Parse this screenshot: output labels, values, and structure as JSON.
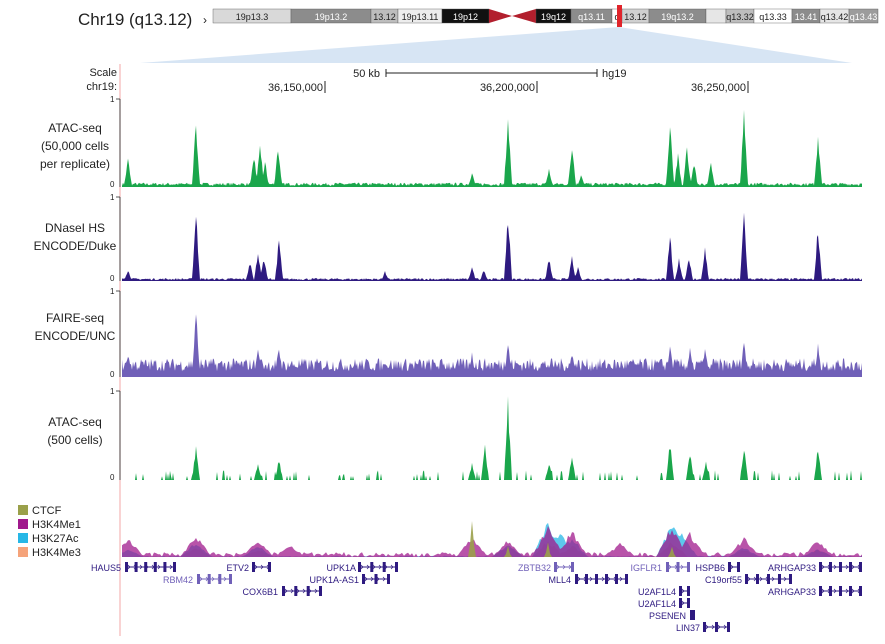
{
  "chrom_title": "Chr19 (q13.12)",
  "ideogram_bands": [
    {
      "label": "19p13.3",
      "shade": "#d9d9d9"
    },
    {
      "label": "19p13.2",
      "shade": "#8c8c8c"
    },
    {
      "label": "13.12",
      "shade": "#bdbdbd"
    },
    {
      "label": "19p13.11",
      "shade": "#ededed"
    },
    {
      "label": "19p12",
      "shade": "#111111"
    },
    {
      "label": "",
      "shade": "#b21f2d"
    },
    {
      "label": "",
      "shade": "#b21f2d"
    },
    {
      "label": "19q12",
      "shade": "#111111"
    },
    {
      "label": "q13.11",
      "shade": "#8c8c8c"
    },
    {
      "label": "q",
      "shade": "#ffffff"
    },
    {
      "label": "13.12",
      "shade": "#d0d0d0"
    },
    {
      "label": "19q13.2",
      "shade": "#8c8c8c"
    },
    {
      "label": "",
      "shade": "#e6e6e6"
    },
    {
      "label": "q13.32",
      "shade": "#bdbdbd"
    },
    {
      "label": "q13.33",
      "shade": "#ffffff"
    },
    {
      "label": "13.41",
      "shade": "#8c8c8c"
    },
    {
      "label": "q13.42",
      "shade": "#e6e6e6"
    },
    {
      "label": "q13.43",
      "shade": "#9c9c9c"
    }
  ],
  "scale": {
    "label": "Scale",
    "chrom": "chr19:",
    "bar": "50 kb",
    "assembly": "hg19"
  },
  "positions": [
    "36,150,000",
    "36,200,000",
    "36,250,000"
  ],
  "tracks": [
    {
      "id": "atac",
      "name_lines": [
        "ATAC-seq",
        "(50,000 cells",
        "per replicate)"
      ],
      "color": "#1aa64b",
      "ymax": "1",
      "ymin": "0"
    },
    {
      "id": "dnase",
      "name_lines": [
        "DNaseI HS",
        "ENCODE/Duke"
      ],
      "color": "#2e1a80",
      "ymax": "1",
      "ymin": "0"
    },
    {
      "id": "faire",
      "name_lines": [
        "FAIRE-seq",
        "ENCODE/UNC"
      ],
      "color": "#7060b8",
      "ymax": "1",
      "ymin": "0"
    },
    {
      "id": "atac500",
      "name_lines": [
        "ATAC-seq",
        "(500 cells)"
      ],
      "color": "#1aa64b",
      "ymax": "1",
      "ymin": "0"
    }
  ],
  "legend": [
    {
      "label": "CTCF",
      "color": "#9aa04a"
    },
    {
      "label": "H3K4Me1",
      "color": "#a0198c"
    },
    {
      "label": "H3K27Ac",
      "color": "#27b7e6"
    },
    {
      "label": "H3K4Me3",
      "color": "#f5a37a"
    }
  ],
  "genes": [
    {
      "name": "HAUS5",
      "color": "#2e1a80"
    },
    {
      "name": "RBM42",
      "color": "#7060b8"
    },
    {
      "name": "ETV2",
      "color": "#2e1a80"
    },
    {
      "name": "COX6B1",
      "color": "#2e1a80"
    },
    {
      "name": "UPK1A",
      "color": "#2e1a80"
    },
    {
      "name": "UPK1A-AS1",
      "color": "#2e1a80"
    },
    {
      "name": "ZBTB32",
      "color": "#7060b8"
    },
    {
      "name": "MLL4",
      "color": "#2e1a80"
    },
    {
      "name": "IGFLR1",
      "color": "#7060b8"
    },
    {
      "name": "U2AF1L4",
      "color": "#2e1a80"
    },
    {
      "name": "U2AF1L4",
      "color": "#2e1a80"
    },
    {
      "name": "PSENEN",
      "color": "#2e1a80"
    },
    {
      "name": "LIN37",
      "color": "#2e1a80"
    },
    {
      "name": "HSPB6",
      "color": "#2e1a80"
    },
    {
      "name": "C19orf55",
      "color": "#2e1a80"
    },
    {
      "name": "ARHGAP33",
      "color": "#2e1a80"
    },
    {
      "name": "ARHGAP33",
      "color": "#2e1a80"
    }
  ]
}
